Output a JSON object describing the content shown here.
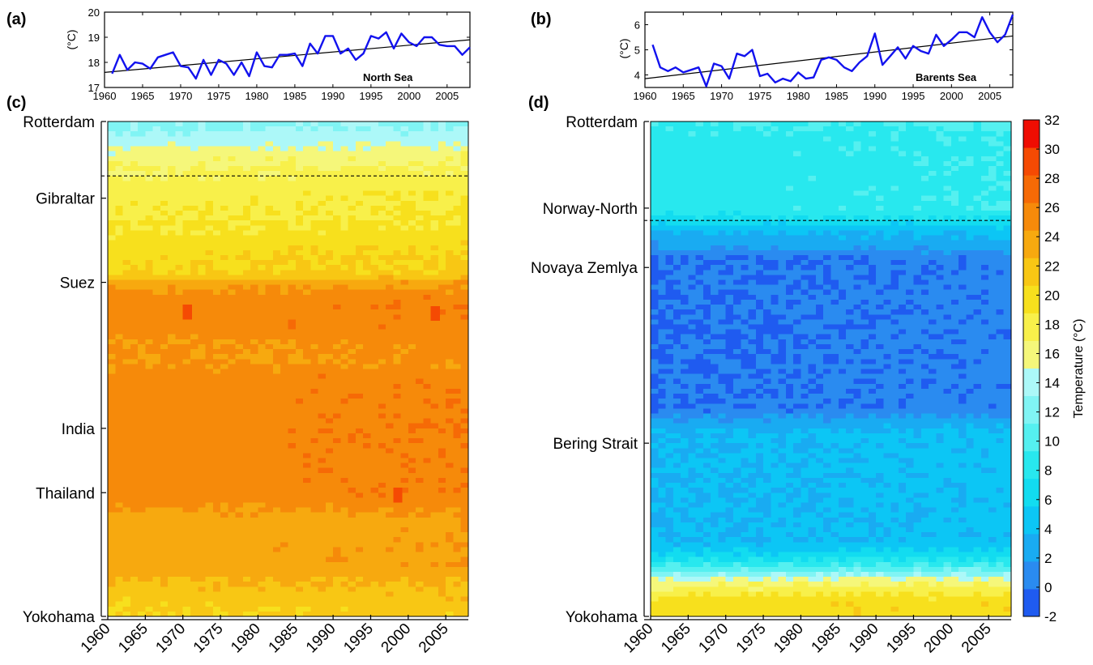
{
  "chart_data": [
    {
      "panel": "(a)",
      "type": "line",
      "annotation": "North Sea",
      "ylabel": "(°C)",
      "xlim": [
        1960,
        2008
      ],
      "ylim": [
        17,
        20
      ],
      "xticks": [
        1960,
        1965,
        1970,
        1975,
        1980,
        1985,
        1990,
        1995,
        2000,
        2005
      ],
      "yticks": [
        17,
        18,
        19,
        20
      ],
      "x": [
        1961,
        1962,
        1963,
        1964,
        1965,
        1966,
        1967,
        1968,
        1969,
        1970,
        1971,
        1972,
        1973,
        1974,
        1975,
        1976,
        1977,
        1978,
        1979,
        1980,
        1981,
        1982,
        1983,
        1984,
        1985,
        1986,
        1987,
        1988,
        1989,
        1990,
        1991,
        1992,
        1993,
        1994,
        1995,
        1996,
        1997,
        1998,
        1999,
        2000,
        2001,
        2002,
        2003,
        2004,
        2005,
        2006,
        2007,
        2008
      ],
      "y": [
        17.55,
        18.3,
        17.7,
        18.0,
        17.95,
        17.75,
        18.2,
        18.3,
        18.4,
        17.85,
        17.8,
        17.35,
        18.1,
        17.5,
        18.1,
        17.95,
        17.5,
        18.0,
        17.45,
        18.4,
        17.85,
        17.8,
        18.3,
        18.3,
        18.35,
        17.85,
        18.75,
        18.35,
        19.05,
        19.05,
        18.35,
        18.55,
        18.1,
        18.35,
        19.05,
        18.95,
        19.2,
        18.55,
        19.15,
        18.8,
        18.65,
        19.0,
        19.0,
        18.7,
        18.65,
        18.65,
        18.3,
        18.6
      ],
      "trend": {
        "x": [
          1960,
          2008
        ],
        "y": [
          17.6,
          18.9
        ]
      }
    },
    {
      "panel": "(b)",
      "type": "line",
      "annotation": "Barents Sea",
      "ylabel": "(°C)",
      "xlim": [
        1960,
        2008
      ],
      "ylim": [
        3.5,
        6.5
      ],
      "xticks": [
        1960,
        1965,
        1970,
        1975,
        1980,
        1985,
        1990,
        1995,
        2000,
        2005
      ],
      "yticks": [
        4,
        5,
        6
      ],
      "x": [
        1961,
        1962,
        1963,
        1964,
        1965,
        1966,
        1967,
        1968,
        1969,
        1970,
        1971,
        1972,
        1973,
        1974,
        1975,
        1976,
        1977,
        1978,
        1979,
        1980,
        1981,
        1982,
        1983,
        1984,
        1985,
        1986,
        1987,
        1988,
        1989,
        1990,
        1991,
        1992,
        1993,
        1994,
        1995,
        1996,
        1997,
        1998,
        1999,
        2000,
        2001,
        2002,
        2003,
        2004,
        2005,
        2006,
        2007,
        2008
      ],
      "y": [
        5.2,
        4.3,
        4.15,
        4.3,
        4.1,
        4.2,
        4.3,
        3.55,
        4.45,
        4.35,
        3.85,
        4.85,
        4.75,
        5.0,
        3.95,
        4.05,
        3.7,
        3.85,
        3.75,
        4.1,
        3.85,
        3.9,
        4.6,
        4.7,
        4.6,
        4.3,
        4.15,
        4.5,
        4.75,
        5.65,
        4.4,
        4.75,
        5.1,
        4.65,
        5.15,
        4.95,
        4.85,
        5.6,
        5.15,
        5.4,
        5.7,
        5.7,
        5.5,
        6.3,
        5.7,
        5.3,
        5.6,
        6.4
      ],
      "trend": {
        "x": [
          1960,
          2008
        ],
        "y": [
          3.85,
          5.55
        ]
      }
    },
    {
      "panel": "(c)",
      "type": "heatmap",
      "x_start": 1960,
      "x_end": 2008,
      "xticks": [
        1960,
        1965,
        1970,
        1975,
        1980,
        1985,
        1990,
        1995,
        2000,
        2005
      ],
      "route_labels": [
        {
          "name": "Rotterdam",
          "pos": 0.0
        },
        {
          "name": "Gibraltar",
          "pos": 0.155
        },
        {
          "name": "Suez",
          "pos": 0.325
        },
        {
          "name": "India",
          "pos": 0.62
        },
        {
          "name": "Thailand",
          "pos": 0.75
        },
        {
          "name": "Yokohama",
          "pos": 1.0
        }
      ],
      "dashed_line_pos": 0.11,
      "profile": [
        [
          0.0,
          13
        ],
        [
          0.04,
          15
        ],
        [
          0.07,
          17
        ],
        [
          0.1,
          18
        ],
        [
          0.14,
          19
        ],
        [
          0.22,
          20
        ],
        [
          0.25,
          21
        ],
        [
          0.31,
          22
        ],
        [
          0.325,
          25
        ],
        [
          0.36,
          27
        ],
        [
          0.42,
          27
        ],
        [
          0.45,
          26
        ],
        [
          0.5,
          26
        ],
        [
          0.515,
          27
        ],
        [
          0.76,
          27
        ],
        [
          0.8,
          25
        ],
        [
          0.9,
          25
        ],
        [
          0.95,
          23
        ],
        [
          1.0,
          22
        ]
      ],
      "hotspots": [
        {
          "year": 1970,
          "pos": 0.38,
          "value": 30
        },
        {
          "year": 2003,
          "pos": 0.383,
          "value": 30
        },
        {
          "year": 1998,
          "pos": 0.75,
          "value": 30
        }
      ]
    },
    {
      "panel": "(d)",
      "type": "heatmap",
      "x_start": 1960,
      "x_end": 2008,
      "xticks": [
        1960,
        1965,
        1970,
        1975,
        1980,
        1985,
        1990,
        1995,
        2000,
        2005
      ],
      "route_labels": [
        {
          "name": "Rotterdam",
          "pos": 0.0
        },
        {
          "name": "Norway-North",
          "pos": 0.175
        },
        {
          "name": "Novaya Zemlya",
          "pos": 0.295
        },
        {
          "name": "Bering Strait",
          "pos": 0.65
        },
        {
          "name": "Yokohama",
          "pos": 1.0
        }
      ],
      "dashed_line_pos": 0.2,
      "profile": [
        [
          0.0,
          10
        ],
        [
          0.03,
          9
        ],
        [
          0.18,
          9
        ],
        [
          0.2,
          7
        ],
        [
          0.22,
          4
        ],
        [
          0.26,
          2
        ],
        [
          0.27,
          0
        ],
        [
          0.58,
          0
        ],
        [
          0.6,
          2
        ],
        [
          0.63,
          4
        ],
        [
          0.85,
          4
        ],
        [
          0.88,
          7
        ],
        [
          0.91,
          12
        ],
        [
          0.93,
          17
        ],
        [
          0.95,
          19
        ],
        [
          0.975,
          21
        ],
        [
          1.0,
          21
        ]
      ]
    }
  ],
  "colorbar": {
    "label": "Temperature (°C)",
    "min": -2,
    "max": 32,
    "step": 2,
    "ticks": [
      -2,
      0,
      2,
      4,
      6,
      8,
      10,
      12,
      14,
      16,
      18,
      20,
      22,
      24,
      26,
      28,
      30,
      32
    ],
    "colors": [
      "#1f5bf0",
      "#2a8bf0",
      "#19abf2",
      "#0cc6f5",
      "#12dcf0",
      "#28e8ee",
      "#55f0f0",
      "#80f4f4",
      "#acf8f8",
      "#f5f77a",
      "#f8f04a",
      "#f7e01d",
      "#f8c714",
      "#f7a90f",
      "#f68a0a",
      "#f66a06",
      "#f54a03",
      "#ef0d02"
    ]
  }
}
